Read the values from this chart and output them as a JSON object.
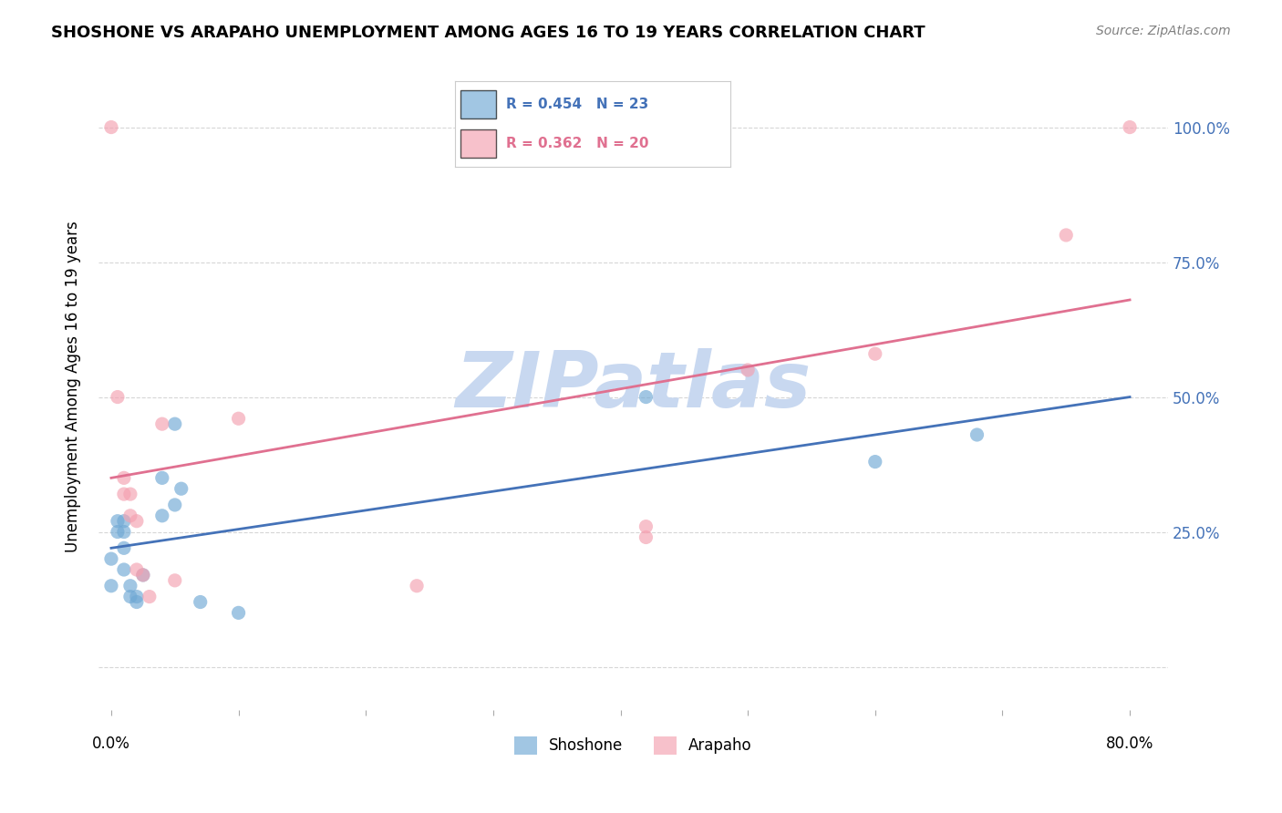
{
  "title": "SHOSHONE VS ARAPAHO UNEMPLOYMENT AMONG AGES 16 TO 19 YEARS CORRELATION CHART",
  "source": "Source: ZipAtlas.com",
  "ylabel": "Unemployment Among Ages 16 to 19 years",
  "y_ticks": [
    0.0,
    0.25,
    0.5,
    0.75,
    1.0
  ],
  "y_tick_labels": [
    "",
    "25.0%",
    "50.0%",
    "75.0%",
    "100.0%"
  ],
  "x_lim": [
    -0.01,
    0.83
  ],
  "y_lim": [
    -0.08,
    1.12
  ],
  "shoshone_R": 0.454,
  "shoshone_N": 23,
  "arapaho_R": 0.362,
  "arapaho_N": 20,
  "shoshone_color": "#6fa8d4",
  "arapaho_color": "#f4a0b0",
  "shoshone_line_color": "#4472b8",
  "arapaho_line_color": "#e07090",
  "watermark_text": "ZIPatlas",
  "watermark_color": "#c8d8f0",
  "shoshone_x": [
    0.0,
    0.0,
    0.005,
    0.005,
    0.01,
    0.01,
    0.01,
    0.01,
    0.015,
    0.015,
    0.02,
    0.02,
    0.025,
    0.04,
    0.04,
    0.05,
    0.05,
    0.055,
    0.07,
    0.1,
    0.42,
    0.6,
    0.68
  ],
  "shoshone_y": [
    0.2,
    0.15,
    0.27,
    0.25,
    0.27,
    0.25,
    0.22,
    0.18,
    0.15,
    0.13,
    0.13,
    0.12,
    0.17,
    0.35,
    0.28,
    0.45,
    0.3,
    0.33,
    0.12,
    0.1,
    0.5,
    0.38,
    0.43
  ],
  "arapaho_x": [
    0.0,
    0.005,
    0.01,
    0.01,
    0.015,
    0.015,
    0.02,
    0.02,
    0.025,
    0.03,
    0.04,
    0.05,
    0.1,
    0.24,
    0.42,
    0.42,
    0.5,
    0.6,
    0.75,
    0.8
  ],
  "arapaho_y": [
    1.0,
    0.5,
    0.35,
    0.32,
    0.32,
    0.28,
    0.27,
    0.18,
    0.17,
    0.13,
    0.45,
    0.16,
    0.46,
    0.15,
    0.24,
    0.26,
    0.55,
    0.58,
    0.8,
    1.0
  ],
  "shoshone_trend_x": [
    0.0,
    0.8
  ],
  "shoshone_trend_y": [
    0.22,
    0.5
  ],
  "arapaho_trend_x": [
    0.0,
    0.8
  ],
  "arapaho_trend_y": [
    0.35,
    0.68
  ],
  "background_color": "#ffffff",
  "grid_color": "#cccccc",
  "marker_size": 120
}
